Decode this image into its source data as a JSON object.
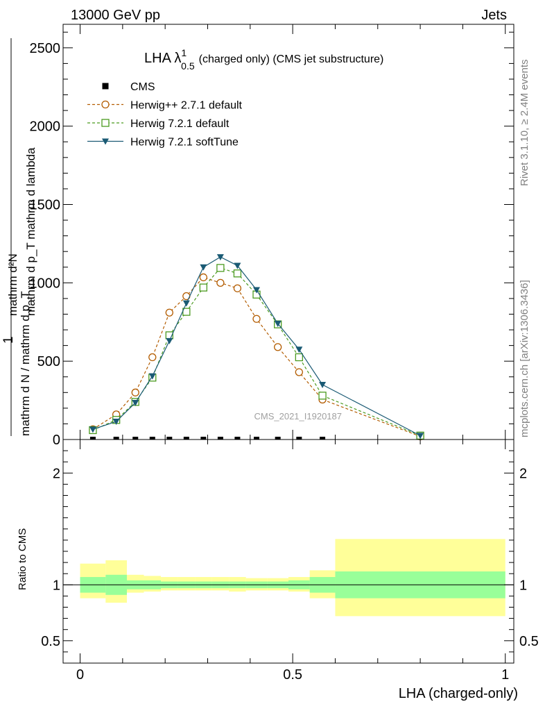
{
  "header": {
    "left": "13000 GeV pp",
    "right": "Jets"
  },
  "side_labels": {
    "rivet": "Rivet 3.1.10, ≥ 2.4M events",
    "mcplots": "mcplots.cern.ch [arXiv:1306.3436]"
  },
  "chart_data": [
    {
      "type": "line",
      "title_main": "LHA λ",
      "title_sup": "1",
      "title_sub": "0.5",
      "title_rest": "(charged only) (CMS jet substructure)",
      "xlabel": "LHA (charged-only)",
      "ylabel_numerator": "1",
      "ylabel_numerator_sup": "mathrm d²N",
      "ylabel_numerator_rest": "mathrm d p_T mathrm d lambda",
      "ylabel_denominator": "mathrm d N / mathrm d p_T",
      "xlim": [
        -0.04,
        1.02
      ],
      "ylim": [
        0,
        2650
      ],
      "y_ticks": [
        {
          "value": 0,
          "label": "0"
        },
        {
          "value": 500,
          "label": "500"
        },
        {
          "value": 1000,
          "label": "1000"
        },
        {
          "value": 1500,
          "label": "1500"
        },
        {
          "value": 2000,
          "label": "2000"
        },
        {
          "value": 2500,
          "label": "2500"
        }
      ],
      "watermark": "CMS_2021_I1920187",
      "legend_position": "top-left",
      "series": [
        {
          "name": "CMS",
          "color": "#000000",
          "marker": "square-filled",
          "x": [
            0.03,
            0.085,
            0.13,
            0.17,
            0.21,
            0.25,
            0.29,
            0.33,
            0.37,
            0.415,
            0.465,
            0.515,
            0.57
          ],
          "values": [
            1,
            1,
            1,
            1,
            1,
            1,
            1,
            1,
            1,
            1,
            1,
            1,
            1
          ]
        },
        {
          "name": "Herwig++ 2.7.1 default",
          "color": "#b35c00",
          "marker": "circle-open",
          "dashed": true,
          "x": [
            0.03,
            0.085,
            0.13,
            0.17,
            0.21,
            0.25,
            0.29,
            0.33,
            0.37,
            0.415,
            0.465,
            0.515,
            0.57,
            0.8
          ],
          "values": [
            65,
            160,
            300,
            525,
            810,
            915,
            1035,
            1000,
            965,
            770,
            590,
            430,
            255,
            20
          ]
        },
        {
          "name": "Herwig 7.2.1 default",
          "color": "#4a9a1f",
          "marker": "square-open",
          "dashed": true,
          "x": [
            0.03,
            0.085,
            0.13,
            0.17,
            0.21,
            0.25,
            0.29,
            0.33,
            0.37,
            0.415,
            0.465,
            0.515,
            0.57,
            0.8
          ],
          "values": [
            60,
            125,
            240,
            395,
            665,
            815,
            970,
            1095,
            1060,
            925,
            735,
            525,
            280,
            25
          ]
        },
        {
          "name": "Herwig 7.2.1 softTune",
          "color": "#1a5a74",
          "marker": "triangle-down-filled",
          "dashed": false,
          "x": [
            0.03,
            0.085,
            0.13,
            0.17,
            0.21,
            0.25,
            0.29,
            0.33,
            0.37,
            0.415,
            0.465,
            0.515,
            0.57,
            0.8
          ],
          "values": [
            65,
            115,
            235,
            405,
            630,
            870,
            1100,
            1165,
            1110,
            955,
            740,
            575,
            350,
            25
          ]
        }
      ]
    },
    {
      "type": "area",
      "ylabel": "Ratio to CMS",
      "xlim": [
        -0.04,
        1.02
      ],
      "ylim": [
        0.3,
        2.3
      ],
      "reference_line": 1,
      "y_ticks": [
        {
          "value": 0.5,
          "label": "0.5"
        },
        {
          "value": 1,
          "label": "1"
        },
        {
          "value": 2,
          "label": "2"
        }
      ],
      "x_ticks": [
        {
          "value": 0,
          "label": "0"
        },
        {
          "value": 0.5,
          "label": "0.5"
        },
        {
          "value": 1,
          "label": "1"
        }
      ],
      "band_colors": {
        "inner": "#99ff99",
        "outer": "#ffff99"
      },
      "bands": [
        {
          "x0": 0.0,
          "x1": 0.06,
          "inner": [
            0.93,
            1.07
          ],
          "outer": [
            0.88,
            1.19
          ]
        },
        {
          "x0": 0.06,
          "x1": 0.11,
          "inner": [
            0.91,
            1.09
          ],
          "outer": [
            0.84,
            1.22
          ]
        },
        {
          "x0": 0.11,
          "x1": 0.15,
          "inner": [
            0.96,
            1.04
          ],
          "outer": [
            0.93,
            1.09
          ]
        },
        {
          "x0": 0.15,
          "x1": 0.19,
          "inner": [
            0.96,
            1.04
          ],
          "outer": [
            0.94,
            1.08
          ]
        },
        {
          "x0": 0.19,
          "x1": 0.23,
          "inner": [
            0.97,
            1.03
          ],
          "outer": [
            0.95,
            1.07
          ]
        },
        {
          "x0": 0.23,
          "x1": 0.27,
          "inner": [
            0.97,
            1.03
          ],
          "outer": [
            0.95,
            1.07
          ]
        },
        {
          "x0": 0.27,
          "x1": 0.31,
          "inner": [
            0.97,
            1.03
          ],
          "outer": [
            0.95,
            1.07
          ]
        },
        {
          "x0": 0.31,
          "x1": 0.35,
          "inner": [
            0.97,
            1.03
          ],
          "outer": [
            0.95,
            1.07
          ]
        },
        {
          "x0": 0.35,
          "x1": 0.39,
          "inner": [
            0.97,
            1.03
          ],
          "outer": [
            0.94,
            1.07
          ]
        },
        {
          "x0": 0.39,
          "x1": 0.44,
          "inner": [
            0.97,
            1.03
          ],
          "outer": [
            0.95,
            1.06
          ]
        },
        {
          "x0": 0.44,
          "x1": 0.49,
          "inner": [
            0.97,
            1.03
          ],
          "outer": [
            0.95,
            1.06
          ]
        },
        {
          "x0": 0.49,
          "x1": 0.54,
          "inner": [
            0.96,
            1.04
          ],
          "outer": [
            0.94,
            1.07
          ]
        },
        {
          "x0": 0.54,
          "x1": 0.6,
          "inner": [
            0.93,
            1.07
          ],
          "outer": [
            0.88,
            1.13
          ]
        },
        {
          "x0": 0.6,
          "x1": 1.0,
          "inner": [
            0.88,
            1.12
          ],
          "outer": [
            0.72,
            1.41
          ]
        }
      ]
    }
  ]
}
